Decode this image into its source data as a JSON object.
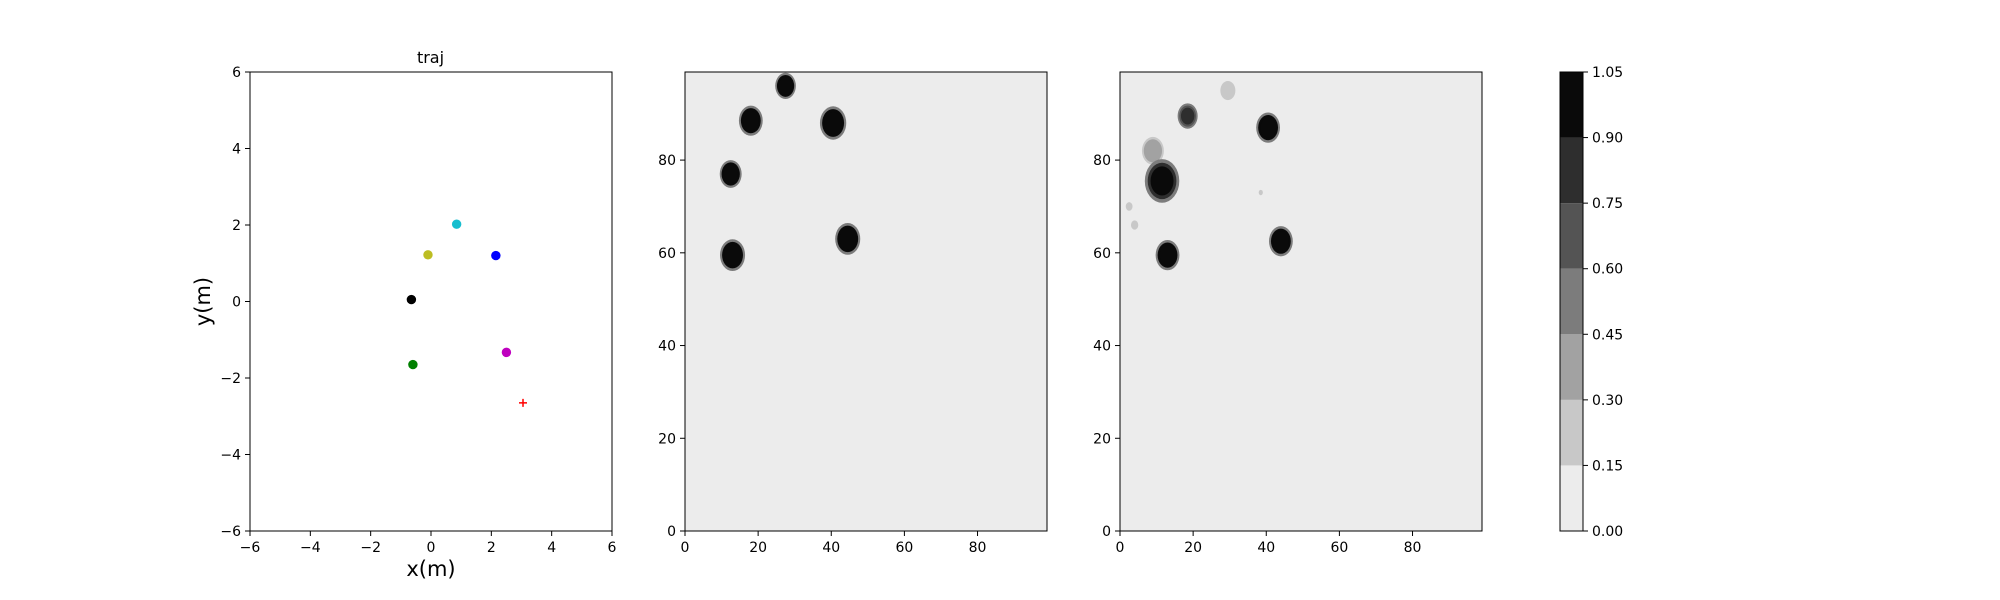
{
  "chart_data": [
    {
      "type": "scatter",
      "title": "traj",
      "xlabel": "x(m)",
      "ylabel": "y(m)",
      "xlim": [
        -6,
        6
      ],
      "ylim": [
        -6,
        6
      ],
      "xticks": [
        "−6",
        "−4",
        "−2",
        "0",
        "2",
        "4",
        "6"
      ],
      "yticks": [
        "−6",
        "−4",
        "−2",
        "0",
        "2",
        "4",
        "6"
      ],
      "grid": false,
      "points": [
        {
          "x": 0.85,
          "y": 2.02,
          "color": "#17becf",
          "marker": "circle"
        },
        {
          "x": -0.1,
          "y": 1.22,
          "color": "#bcbd22",
          "marker": "circle"
        },
        {
          "x": 2.15,
          "y": 1.2,
          "color": "#0000ff",
          "marker": "circle"
        },
        {
          "x": -0.65,
          "y": 0.05,
          "color": "#000000",
          "marker": "circle"
        },
        {
          "x": -0.6,
          "y": -1.65,
          "color": "#008000",
          "marker": "circle"
        },
        {
          "x": 2.5,
          "y": -1.33,
          "color": "#bf00bf",
          "marker": "circle"
        },
        {
          "x": 3.05,
          "y": -2.65,
          "color": "#ff0000",
          "marker": "plus"
        }
      ]
    },
    {
      "type": "heatmap",
      "title": "",
      "xlim": [
        0,
        99
      ],
      "ylim": [
        0,
        99
      ],
      "xticks": [
        "0",
        "20",
        "40",
        "60",
        "80"
      ],
      "yticks": [
        "0",
        "20",
        "40",
        "60",
        "80"
      ],
      "background_level": 0.05,
      "blobs": [
        {
          "cx": 27.5,
          "cy": 96,
          "r": 3.3,
          "value": 1.0
        },
        {
          "cx": 18,
          "cy": 88.5,
          "r": 3.8,
          "value": 1.0
        },
        {
          "cx": 40.5,
          "cy": 88,
          "r": 4.2,
          "value": 1.0
        },
        {
          "cx": 12.5,
          "cy": 77,
          "r": 3.5,
          "value": 1.0
        },
        {
          "cx": 44.5,
          "cy": 63,
          "r": 4.0,
          "value": 1.0
        },
        {
          "cx": 13,
          "cy": 59.5,
          "r": 4.0,
          "value": 1.0
        }
      ]
    },
    {
      "type": "heatmap",
      "title": "",
      "xlim": [
        0,
        99
      ],
      "ylim": [
        0,
        99
      ],
      "xticks": [
        "0",
        "20",
        "40",
        "60",
        "80"
      ],
      "yticks": [
        "0",
        "20",
        "40",
        "60",
        "80"
      ],
      "background_level": 0.05,
      "blobs": [
        {
          "cx": 40.5,
          "cy": 87,
          "r": 3.8,
          "value": 1.0
        },
        {
          "cx": 44,
          "cy": 62.5,
          "r": 3.8,
          "value": 1.0
        },
        {
          "cx": 13,
          "cy": 59.5,
          "r": 3.8,
          "value": 1.0
        },
        {
          "cx": 11.5,
          "cy": 75.5,
          "r": 5.5,
          "value": 0.95
        },
        {
          "cx": 9,
          "cy": 82,
          "r": 3.5,
          "value": 0.4
        },
        {
          "cx": 18.5,
          "cy": 89.5,
          "r": 3.2,
          "value": 0.8
        },
        {
          "cx": 29.5,
          "cy": 95,
          "r": 2.4,
          "value": 0.25
        },
        {
          "cx": 2.5,
          "cy": 70,
          "r": 1.3,
          "value": 0.22
        },
        {
          "cx": 4,
          "cy": 66,
          "r": 1.4,
          "value": 0.22
        },
        {
          "cx": 38.5,
          "cy": 73,
          "r": 0.8,
          "value": 0.2
        }
      ]
    }
  ],
  "colorbar": {
    "levels": [
      "0.00",
      "0.15",
      "0.30",
      "0.45",
      "0.60",
      "0.75",
      "0.90",
      "1.05"
    ],
    "colors": [
      "#ececec",
      "#c8c8c8",
      "#a2a2a2",
      "#7c7c7c",
      "#545454",
      "#2e2e2e",
      "#0a0a0a"
    ]
  }
}
